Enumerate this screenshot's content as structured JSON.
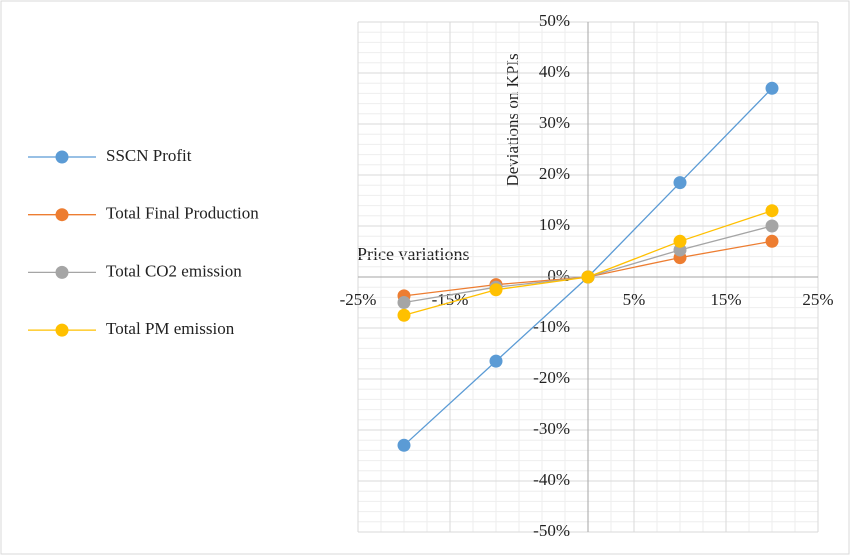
{
  "chart_data": {
    "type": "line",
    "x_label": "Price variations",
    "y_label": "Deviations on KPIs",
    "x": [
      -20,
      -10,
      0,
      10,
      20
    ],
    "series": [
      {
        "name": "SSCN Profit",
        "color": "#5b9bd5",
        "values": [
          -33,
          -16.5,
          0,
          18.5,
          37
        ]
      },
      {
        "name": "Total Final Production",
        "color": "#ed7d31",
        "values": [
          -3.7,
          -1.5,
          0,
          3.8,
          7
        ]
      },
      {
        "name": "Total CO2 emission",
        "color": "#a5a5a5",
        "values": [
          -5,
          -2,
          0,
          5.3,
          10
        ]
      },
      {
        "name": "Total PM emission",
        "color": "#ffc000",
        "values": [
          -7.5,
          -2.5,
          0,
          7,
          13
        ]
      }
    ],
    "xlim": [
      -25,
      25
    ],
    "ylim": [
      -50,
      50
    ],
    "xticks": [
      {
        "value": -25,
        "label": "-25%"
      },
      {
        "value": -15,
        "label": "-15%"
      },
      {
        "value": 5,
        "label": "5%"
      },
      {
        "value": 15,
        "label": "15%"
      },
      {
        "value": 25,
        "label": "25%"
      }
    ],
    "yticks": [
      {
        "value": -50,
        "label": "-50%"
      },
      {
        "value": -40,
        "label": "-40%"
      },
      {
        "value": -30,
        "label": "-30%"
      },
      {
        "value": -20,
        "label": "-20%"
      },
      {
        "value": -10,
        "label": "-10%"
      },
      {
        "value": 0,
        "label": "0%"
      },
      {
        "value": 10,
        "label": "10%"
      },
      {
        "value": 20,
        "label": "20%"
      },
      {
        "value": 30,
        "label": "30%"
      },
      {
        "value": 40,
        "label": "40%"
      },
      {
        "value": 50,
        "label": "50%"
      }
    ],
    "grid": true,
    "legend": "left"
  }
}
